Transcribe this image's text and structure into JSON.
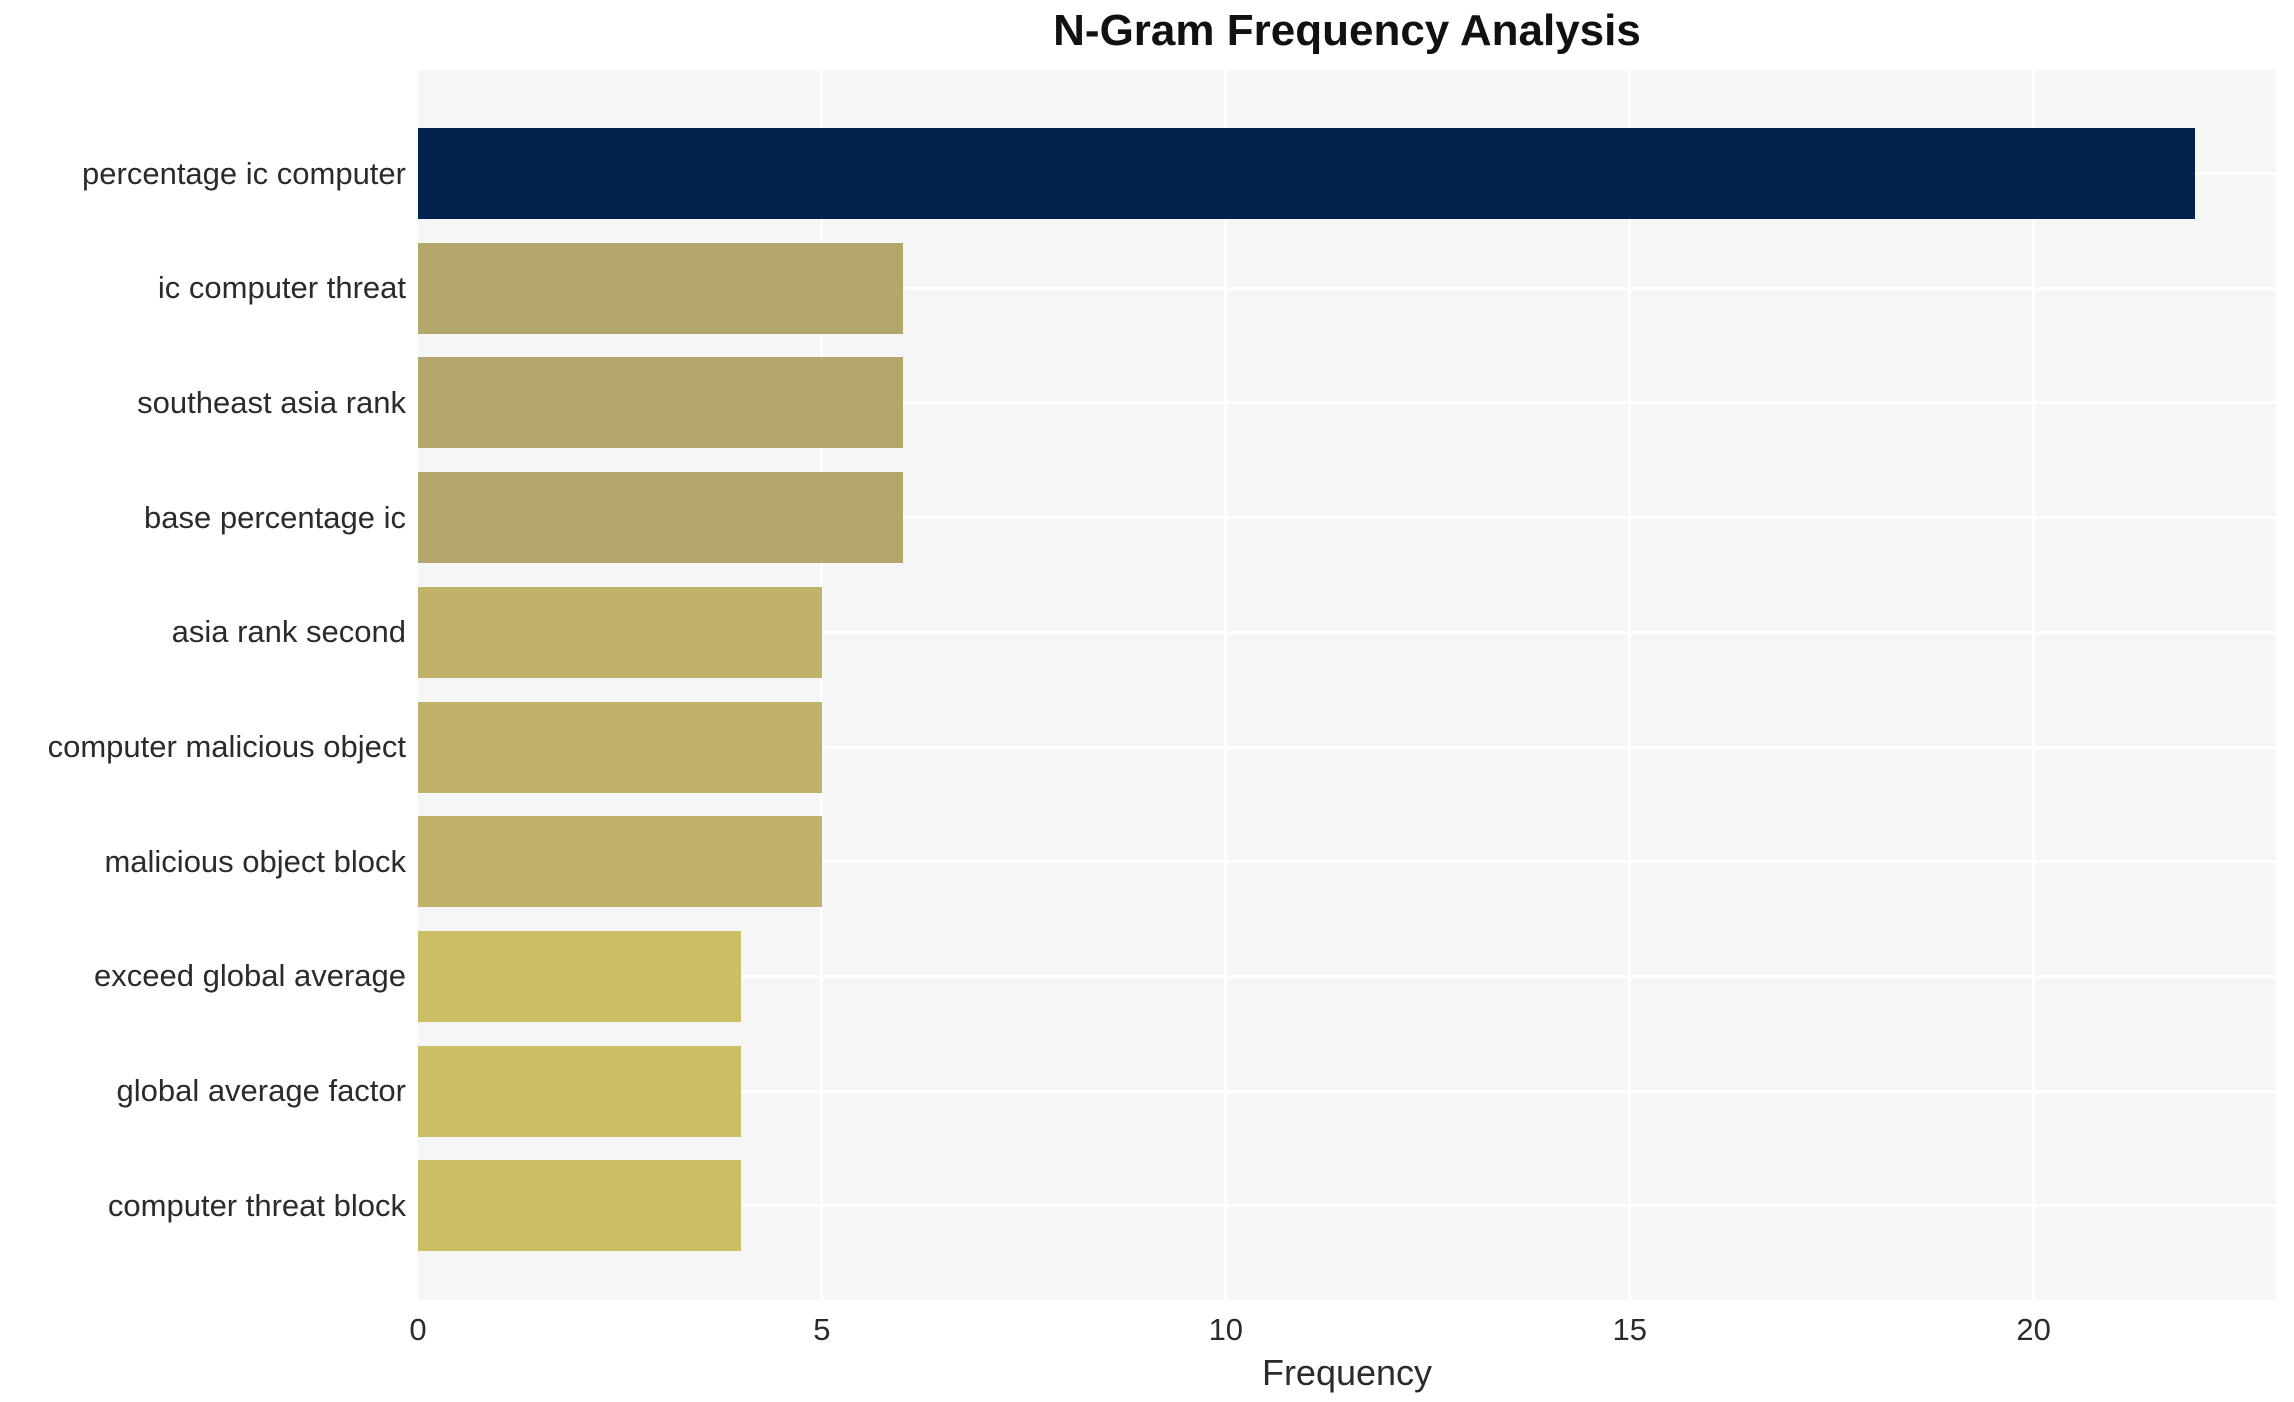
{
  "chart_data": {
    "type": "bar",
    "orientation": "horizontal",
    "title": "N-Gram Frequency Analysis",
    "xlabel": "Frequency",
    "ylabel": "",
    "categories": [
      "percentage ic computer",
      "ic computer threat",
      "southeast asia rank",
      "base percentage ic",
      "asia rank second",
      "computer malicious object",
      "malicious object block",
      "exceed global average",
      "global average factor",
      "computer threat block"
    ],
    "values": [
      22,
      6,
      6,
      6,
      5,
      5,
      5,
      4,
      4,
      4
    ],
    "bar_colors": [
      "#03224d",
      "#b3a76c",
      "#b3a76c",
      "#b3a76c",
      "#c1b269",
      "#c1b269",
      "#c1b269",
      "#ccbe64",
      "#ccbe64",
      "#ccbe64"
    ],
    "x_ticks": [
      0,
      5,
      10,
      15,
      20
    ],
    "xlim": [
      0,
      23
    ],
    "grid": true,
    "legend_position": "none",
    "plot_bg": "#f6f6f6",
    "grid_color": "#ffffff",
    "text_color": "#2b2b2b",
    "title_color": "#111111"
  }
}
